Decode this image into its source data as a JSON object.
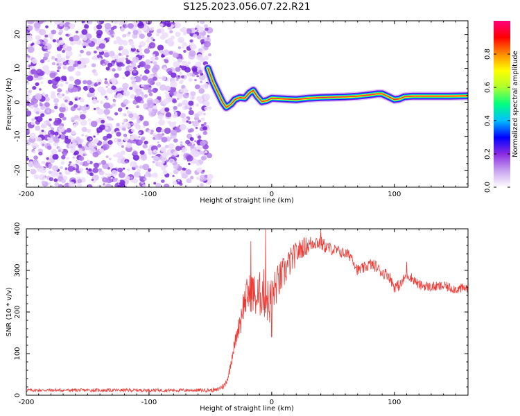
{
  "figure": {
    "title": "S125.2023.056.07.22.R21"
  },
  "colors": {
    "snr_line": "#ee3a35",
    "axis": "#000000",
    "noise_purple": "#7a1fe0"
  },
  "chart_data": [
    {
      "type": "heatmap",
      "xlabel": "Height of straight line (km)",
      "ylabel": "Frequency (Hz)",
      "xlim": [
        -200,
        160
      ],
      "ylim": [
        -25,
        24
      ],
      "x_ticks": [
        -200,
        -100,
        0,
        100
      ],
      "y_ticks": [
        -20,
        -10,
        0,
        10,
        20
      ],
      "noise_region_x": [
        -200,
        -50
      ],
      "ridge": {
        "x": [
          -52,
          -48,
          -44,
          -40,
          -37,
          -33,
          -30,
          -26,
          -22,
          -18,
          -15,
          -12,
          -8,
          -4,
          0,
          10,
          20,
          30,
          40,
          50,
          60,
          70,
          80,
          86,
          90,
          96,
          100,
          104,
          108,
          115,
          130,
          145,
          160
        ],
        "freq": [
          10,
          6,
          3,
          0,
          -1.5,
          -0.5,
          0.8,
          1.4,
          1.2,
          2.8,
          3.5,
          1.8,
          0.2,
          0.5,
          1.2,
          1.0,
          0.8,
          1.2,
          1.4,
          1.5,
          1.6,
          1.8,
          2.2,
          2.5,
          2.5,
          1.5,
          0.8,
          1.0,
          1.6,
          1.8,
          1.8,
          1.8,
          1.9
        ]
      },
      "colorbar": {
        "label": "Normalized spectral amplitude",
        "ticks": [
          0.0,
          0.2,
          0.4,
          0.6,
          0.8
        ],
        "tick_labels": [
          "0.0",
          "0.2",
          "0.4",
          "0.6",
          "0.8"
        ],
        "range": [
          0,
          1
        ],
        "colormap": [
          "#ffffff",
          "#c8a2f0",
          "#8a2be2",
          "#0000ff",
          "#00bfff",
          "#00ff7f",
          "#adff2f",
          "#ffff00",
          "#ff8c00",
          "#ff0000",
          "#ff007f"
        ]
      }
    },
    {
      "type": "line",
      "xlabel": "Height of straight line (km)",
      "ylabel": "SNR (10 * v/v)",
      "xlim": [
        -200,
        160
      ],
      "ylim": [
        0,
        400
      ],
      "x_ticks": [
        -200,
        -100,
        0,
        100
      ],
      "y_ticks": [
        0,
        100,
        200,
        300,
        400
      ],
      "series": [
        {
          "x": [
            -200,
            -150,
            -100,
            -60,
            -45,
            -38,
            -35,
            -32,
            -28,
            -24,
            -20,
            -16,
            -12,
            -8,
            -5,
            -2,
            0,
            5,
            10,
            15,
            20,
            25,
            30,
            35,
            40,
            45,
            50,
            55,
            60,
            65,
            70,
            75,
            80,
            85,
            90,
            95,
            100,
            105,
            110,
            115,
            120,
            130,
            140,
            150,
            160
          ],
          "y": [
            12,
            12,
            12,
            12,
            12,
            25,
            50,
            100,
            150,
            210,
            240,
            250,
            230,
            250,
            240,
            220,
            240,
            270,
            295,
            320,
            340,
            355,
            360,
            370,
            365,
            355,
            350,
            345,
            340,
            335,
            300,
            305,
            315,
            310,
            295,
            290,
            260,
            265,
            290,
            280,
            265,
            260,
            262,
            255,
            258
          ],
          "noise": [
            4,
            4,
            4,
            4,
            5,
            8,
            10,
            15,
            20,
            35,
            45,
            50,
            55,
            60,
            60,
            55,
            50,
            45,
            40,
            35,
            30,
            25,
            22,
            20,
            18,
            16,
            14,
            14,
            14,
            14,
            14,
            14,
            14,
            14,
            14,
            14,
            14,
            14,
            12,
            12,
            12,
            12,
            12,
            12,
            12
          ],
          "spikes": [
            [
              -5,
              400
            ],
            [
              -17,
              370
            ],
            [
              0,
              140
            ],
            [
              -25,
              150
            ],
            [
              40,
              395
            ],
            [
              110,
              320
            ]
          ]
        }
      ]
    }
  ]
}
